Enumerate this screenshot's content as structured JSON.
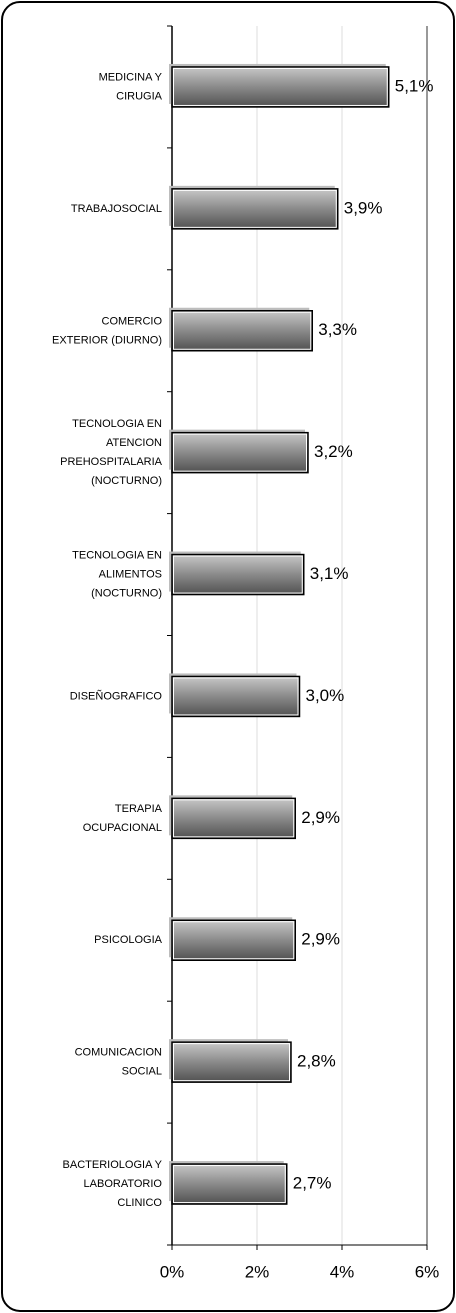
{
  "chart_data": {
    "type": "barh",
    "categories": [
      "MEDICINA Y\nCIRUGIA",
      "TRABAJOSOCIAL",
      "COMERCIO\nEXTERIOR (DIURNO)",
      "TECNOLOGIA EN\nATENCION\nPREHOSPITALARIA\n(NOCTURNO)",
      "TECNOLOGIA EN\nALIMENTOS\n(NOCTURNO)",
      "DISEÑOGRAFICO",
      "TERAPIA\nOCUPACIONAL",
      "PSICOLOGIA",
      "COMUNICACION\nSOCIAL",
      "BACTERIOLOGIA Y\nLABORATORIO\nCLINICO"
    ],
    "values": [
      5.1,
      3.9,
      3.3,
      3.2,
      3.1,
      3.0,
      2.9,
      2.9,
      2.8,
      2.7
    ],
    "value_labels": [
      "5,1%",
      "3,9%",
      "3,3%",
      "3,2%",
      "3,1%",
      "3,0%",
      "2,9%",
      "2,9%",
      "2,8%",
      "2,7%"
    ],
    "color": "#707070",
    "xlim": [
      0,
      6
    ],
    "xticks": [
      {
        "value": 0,
        "label": "0%"
      },
      {
        "value": 2,
        "label": "2%"
      },
      {
        "value": 4,
        "label": "4%"
      },
      {
        "value": 6,
        "label": "6%"
      }
    ],
    "grid": true
  }
}
